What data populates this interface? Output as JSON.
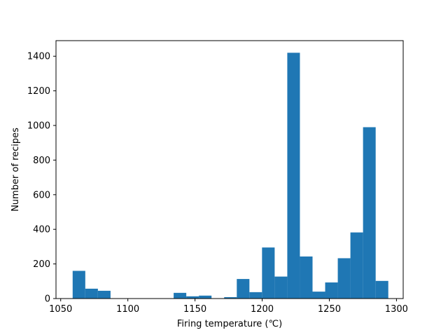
{
  "chart_data": {
    "type": "bar",
    "title": "",
    "xlabel": "Firing temperature (℃)",
    "ylabel": "Number of recipes",
    "xlim": [
      1046.5,
      1305.0
    ],
    "ylim": [
      0,
      1490
    ],
    "x_ticks": [
      1050,
      1100,
      1150,
      1200,
      1250,
      1300
    ],
    "y_ticks": [
      0,
      200,
      400,
      600,
      800,
      1000,
      1200,
      1400
    ],
    "bar_color": "#1f77b4",
    "grid": false,
    "legend": "none",
    "bins": [
      {
        "x0": 1058.9,
        "x1": 1068.3,
        "count": 160
      },
      {
        "x0": 1068.3,
        "x1": 1077.7,
        "count": 57
      },
      {
        "x0": 1077.7,
        "x1": 1087.1,
        "count": 45
      },
      {
        "x0": 1087.1,
        "x1": 1096.5,
        "count": 0
      },
      {
        "x0": 1096.5,
        "x1": 1105.9,
        "count": 0
      },
      {
        "x0": 1105.9,
        "x1": 1115.3,
        "count": 0
      },
      {
        "x0": 1115.3,
        "x1": 1124.7,
        "count": 0
      },
      {
        "x0": 1124.7,
        "x1": 1134.1,
        "count": 0
      },
      {
        "x0": 1134.1,
        "x1": 1143.5,
        "count": 33
      },
      {
        "x0": 1143.5,
        "x1": 1152.9,
        "count": 13
      },
      {
        "x0": 1152.9,
        "x1": 1162.3,
        "count": 17
      },
      {
        "x0": 1162.3,
        "x1": 1171.7,
        "count": 0
      },
      {
        "x0": 1171.7,
        "x1": 1181.1,
        "count": 8
      },
      {
        "x0": 1181.1,
        "x1": 1190.5,
        "count": 113
      },
      {
        "x0": 1190.5,
        "x1": 1199.9,
        "count": 37
      },
      {
        "x0": 1199.9,
        "x1": 1209.3,
        "count": 295
      },
      {
        "x0": 1209.3,
        "x1": 1218.7,
        "count": 127
      },
      {
        "x0": 1218.7,
        "x1": 1228.1,
        "count": 1420
      },
      {
        "x0": 1228.1,
        "x1": 1237.5,
        "count": 243
      },
      {
        "x0": 1237.5,
        "x1": 1246.9,
        "count": 40
      },
      {
        "x0": 1246.9,
        "x1": 1256.3,
        "count": 93
      },
      {
        "x0": 1256.3,
        "x1": 1265.7,
        "count": 233
      },
      {
        "x0": 1265.7,
        "x1": 1275.1,
        "count": 382
      },
      {
        "x0": 1275.1,
        "x1": 1284.5,
        "count": 990
      },
      {
        "x0": 1284.5,
        "x1": 1293.9,
        "count": 102
      }
    ]
  }
}
